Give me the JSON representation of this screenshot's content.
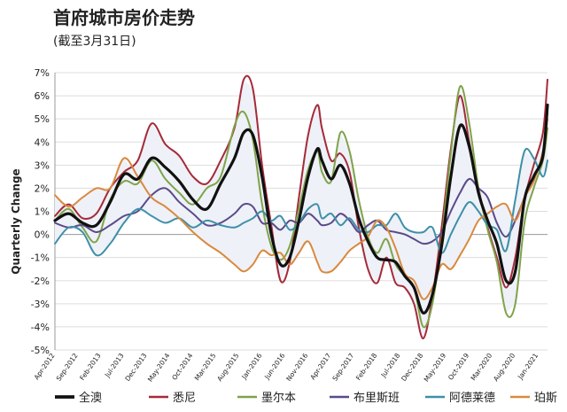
{
  "header": {
    "title": "首府城市房价走势",
    "subtitle": "(截至3月31日)"
  },
  "chart_data": {
    "type": "line",
    "title": "首府城市房价走势",
    "subtitle": "(截至3月31日)",
    "ylabel": "Quarterly Change",
    "xlabel": "",
    "ylim": [
      -5,
      7
    ],
    "yticks": [
      "7%",
      "6%",
      "5%",
      "4%",
      "3%",
      "2%",
      "1%",
      "0%",
      "-1%",
      "-2%",
      "-3%",
      "-4%",
      "-5%"
    ],
    "x_tick_labels": [
      "Apr-2012",
      "Sep-2012",
      "Feb-2013",
      "Jul-2013",
      "Dec-2013",
      "May-2014",
      "Oct-2014",
      "Mar-2015",
      "Aug-2015",
      "Jan-2016",
      "Jun-2016",
      "Nov-2016",
      "Apr-2017",
      "Sep-2017",
      "Feb-2018",
      "Jul-2018",
      "Dec-2018",
      "May-2019",
      "Oct-2019",
      "Mar-2020",
      "Aug-2020",
      "Jan-2021"
    ],
    "x_start": "2012-04",
    "x_end": "2021-03",
    "grid": true,
    "legend_position": "bottom",
    "series": [
      {
        "name": "全澳",
        "color": "#111111",
        "width": 3.2,
        "values": [
          [
            0,
            0.6
          ],
          [
            3,
            0.9
          ],
          [
            6,
            0.5
          ],
          [
            9,
            0.4
          ],
          [
            12,
            1.4
          ],
          [
            15,
            2.6
          ],
          [
            18,
            2.4
          ],
          [
            21,
            3.3
          ],
          [
            24,
            2.9
          ],
          [
            27,
            2.3
          ],
          [
            30,
            1.5
          ],
          [
            33,
            1.1
          ],
          [
            36,
            2.2
          ],
          [
            39,
            3.3
          ],
          [
            41,
            4.4
          ],
          [
            43,
            4.3
          ],
          [
            45,
            2.5
          ],
          [
            47,
            0.0
          ],
          [
            49,
            -1.3
          ],
          [
            51,
            -1.0
          ],
          [
            53,
            0.6
          ],
          [
            55,
            2.5
          ],
          [
            57,
            3.7
          ],
          [
            58,
            3.2
          ],
          [
            60,
            2.4
          ],
          [
            62,
            3.0
          ],
          [
            64,
            2.2
          ],
          [
            66,
            0.7
          ],
          [
            68,
            -0.3
          ],
          [
            70,
            -1.0
          ],
          [
            72,
            -1.1
          ],
          [
            74,
            -1.2
          ],
          [
            76,
            -1.8
          ],
          [
            78,
            -2.3
          ],
          [
            80,
            -3.4
          ],
          [
            82,
            -2.6
          ],
          [
            84,
            -0.5
          ],
          [
            86,
            2.5
          ],
          [
            88,
            4.7
          ],
          [
            90,
            3.8
          ],
          [
            92,
            1.8
          ],
          [
            94,
            0.6
          ],
          [
            96,
            -0.4
          ],
          [
            98,
            -2.0
          ],
          [
            100,
            -1.6
          ],
          [
            102,
            1.5
          ],
          [
            104,
            2.5
          ],
          [
            106,
            3.4
          ],
          [
            107,
            5.6
          ]
        ]
      },
      {
        "name": "悉尼",
        "color": "#a52a38",
        "width": 2,
        "values": [
          [
            0,
            0.8
          ],
          [
            3,
            1.3
          ],
          [
            6,
            0.7
          ],
          [
            9,
            0.9
          ],
          [
            12,
            2.0
          ],
          [
            15,
            2.7
          ],
          [
            18,
            3.2
          ],
          [
            21,
            4.8
          ],
          [
            24,
            3.9
          ],
          [
            27,
            3.4
          ],
          [
            30,
            2.5
          ],
          [
            33,
            2.2
          ],
          [
            36,
            3.2
          ],
          [
            39,
            4.6
          ],
          [
            41,
            6.7
          ],
          [
            43,
            6.3
          ],
          [
            45,
            3.0
          ],
          [
            47,
            0.4
          ],
          [
            49,
            -2.0
          ],
          [
            51,
            -1.2
          ],
          [
            53,
            1.6
          ],
          [
            55,
            4.3
          ],
          [
            57,
            5.6
          ],
          [
            58,
            4.6
          ],
          [
            60,
            3.2
          ],
          [
            62,
            3.5
          ],
          [
            64,
            2.7
          ],
          [
            66,
            0.3
          ],
          [
            68,
            -1.5
          ],
          [
            70,
            -2.1
          ],
          [
            72,
            -1.0
          ],
          [
            74,
            -2.1
          ],
          [
            76,
            -2.3
          ],
          [
            78,
            -3.0
          ],
          [
            80,
            -4.5
          ],
          [
            82,
            -2.7
          ],
          [
            84,
            0.3
          ],
          [
            86,
            3.7
          ],
          [
            88,
            6.0
          ],
          [
            90,
            4.0
          ],
          [
            92,
            2.0
          ],
          [
            94,
            0.3
          ],
          [
            96,
            -1.0
          ],
          [
            98,
            -2.3
          ],
          [
            100,
            -1.0
          ],
          [
            102,
            1.5
          ],
          [
            104,
            3.0
          ],
          [
            106,
            4.4
          ],
          [
            107,
            6.7
          ]
        ]
      },
      {
        "name": "墨尔本",
        "color": "#7fa34a",
        "width": 2,
        "values": [
          [
            0,
            0.6
          ],
          [
            3,
            1.1
          ],
          [
            6,
            0.3
          ],
          [
            9,
            -0.3
          ],
          [
            12,
            1.5
          ],
          [
            15,
            2.3
          ],
          [
            18,
            2.2
          ],
          [
            21,
            3.2
          ],
          [
            24,
            2.4
          ],
          [
            27,
            1.8
          ],
          [
            30,
            1.3
          ],
          [
            33,
            2.0
          ],
          [
            36,
            2.5
          ],
          [
            39,
            4.7
          ],
          [
            41,
            5.3
          ],
          [
            43,
            4.1
          ],
          [
            45,
            1.3
          ],
          [
            47,
            -0.5
          ],
          [
            49,
            -1.1
          ],
          [
            51,
            -0.5
          ],
          [
            53,
            1.1
          ],
          [
            55,
            2.8
          ],
          [
            57,
            3.6
          ],
          [
            58,
            2.7
          ],
          [
            60,
            2.3
          ],
          [
            62,
            4.4
          ],
          [
            64,
            3.6
          ],
          [
            66,
            1.5
          ],
          [
            68,
            -0.1
          ],
          [
            70,
            -0.8
          ],
          [
            72,
            -0.2
          ],
          [
            74,
            -1.3
          ],
          [
            76,
            -1.8
          ],
          [
            78,
            -2.3
          ],
          [
            80,
            -4.0
          ],
          [
            82,
            -3.0
          ],
          [
            84,
            -0.2
          ],
          [
            86,
            3.5
          ],
          [
            88,
            6.4
          ],
          [
            90,
            4.8
          ],
          [
            92,
            2.0
          ],
          [
            94,
            0.2
          ],
          [
            96,
            -1.2
          ],
          [
            98,
            -3.4
          ],
          [
            100,
            -3.0
          ],
          [
            102,
            0.5
          ],
          [
            104,
            2.0
          ],
          [
            106,
            3.2
          ],
          [
            107,
            4.6
          ]
        ]
      },
      {
        "name": "布里斯班",
        "color": "#5a4a8a",
        "width": 2,
        "values": [
          [
            0,
            0.5
          ],
          [
            3,
            0.3
          ],
          [
            6,
            0.4
          ],
          [
            9,
            0.1
          ],
          [
            12,
            0.4
          ],
          [
            15,
            0.8
          ],
          [
            18,
            1.0
          ],
          [
            21,
            1.7
          ],
          [
            24,
            2.0
          ],
          [
            27,
            1.4
          ],
          [
            30,
            0.9
          ],
          [
            33,
            0.4
          ],
          [
            36,
            0.5
          ],
          [
            39,
            0.9
          ],
          [
            41,
            1.3
          ],
          [
            43,
            1.2
          ],
          [
            45,
            0.5
          ],
          [
            47,
            0.5
          ],
          [
            49,
            0.2
          ],
          [
            51,
            0.6
          ],
          [
            53,
            0.5
          ],
          [
            55,
            0.9
          ],
          [
            57,
            0.6
          ],
          [
            58,
            0.4
          ],
          [
            60,
            0.5
          ],
          [
            62,
            0.9
          ],
          [
            64,
            0.6
          ],
          [
            66,
            0.1
          ],
          [
            68,
            0.4
          ],
          [
            70,
            0.6
          ],
          [
            72,
            0.2
          ],
          [
            74,
            0.1
          ],
          [
            76,
            0.0
          ],
          [
            78,
            -0.2
          ],
          [
            80,
            -0.4
          ],
          [
            82,
            -0.3
          ],
          [
            84,
            0.1
          ],
          [
            86,
            1.0
          ],
          [
            88,
            1.8
          ],
          [
            90,
            2.4
          ],
          [
            92,
            2.0
          ],
          [
            94,
            1.6
          ],
          [
            96,
            0.5
          ],
          [
            98,
            -0.1
          ],
          [
            100,
            0.6
          ],
          [
            102,
            1.6
          ],
          [
            104,
            2.5
          ],
          [
            106,
            3.3
          ],
          [
            107,
            5.3
          ]
        ]
      },
      {
        "name": "阿德莱德",
        "color": "#3e8fa8",
        "width": 2,
        "values": [
          [
            0,
            -0.4
          ],
          [
            3,
            0.3
          ],
          [
            6,
            0.1
          ],
          [
            9,
            -0.9
          ],
          [
            12,
            -0.4
          ],
          [
            15,
            0.5
          ],
          [
            18,
            1.1
          ],
          [
            21,
            0.8
          ],
          [
            24,
            0.5
          ],
          [
            27,
            0.7
          ],
          [
            30,
            0.3
          ],
          [
            33,
            0.6
          ],
          [
            36,
            0.4
          ],
          [
            39,
            0.3
          ],
          [
            41,
            0.5
          ],
          [
            43,
            0.7
          ],
          [
            45,
            1.0
          ],
          [
            47,
            0.6
          ],
          [
            49,
            0.8
          ],
          [
            51,
            0.2
          ],
          [
            53,
            0.5
          ],
          [
            55,
            1.1
          ],
          [
            57,
            1.3
          ],
          [
            58,
            0.7
          ],
          [
            60,
            0.9
          ],
          [
            62,
            0.4
          ],
          [
            64,
            0.7
          ],
          [
            66,
            0.2
          ],
          [
            68,
            0.1
          ],
          [
            70,
            0.4
          ],
          [
            72,
            0.4
          ],
          [
            74,
            0.9
          ],
          [
            76,
            0.3
          ],
          [
            78,
            0.1
          ],
          [
            80,
            0.1
          ],
          [
            82,
            0.3
          ],
          [
            84,
            -0.8
          ],
          [
            86,
            0.0
          ],
          [
            88,
            0.8
          ],
          [
            90,
            1.4
          ],
          [
            92,
            1.0
          ],
          [
            94,
            0.4
          ],
          [
            96,
            0.2
          ],
          [
            98,
            -0.7
          ],
          [
            100,
            1.5
          ],
          [
            102,
            3.6
          ],
          [
            104,
            3.3
          ],
          [
            106,
            2.5
          ],
          [
            107,
            3.2
          ]
        ]
      },
      {
        "name": "珀斯",
        "color": "#d9893e",
        "width": 2,
        "values": [
          [
            0,
            1.7
          ],
          [
            3,
            1.2
          ],
          [
            6,
            1.6
          ],
          [
            9,
            2.0
          ],
          [
            12,
            2.0
          ],
          [
            15,
            3.3
          ],
          [
            18,
            2.5
          ],
          [
            21,
            1.6
          ],
          [
            24,
            1.2
          ],
          [
            27,
            0.7
          ],
          [
            30,
            0.1
          ],
          [
            33,
            -0.4
          ],
          [
            36,
            -0.8
          ],
          [
            39,
            -1.3
          ],
          [
            41,
            -1.6
          ],
          [
            43,
            -1.3
          ],
          [
            45,
            -0.7
          ],
          [
            47,
            -0.9
          ],
          [
            49,
            -0.8
          ],
          [
            51,
            -1.3
          ],
          [
            53,
            -0.8
          ],
          [
            55,
            -0.3
          ],
          [
            57,
            -1.2
          ],
          [
            58,
            -1.6
          ],
          [
            60,
            -1.6
          ],
          [
            62,
            -1.2
          ],
          [
            64,
            -0.7
          ],
          [
            66,
            -0.4
          ],
          [
            68,
            -0.1
          ],
          [
            70,
            0.6
          ],
          [
            72,
            0.3
          ],
          [
            74,
            -0.6
          ],
          [
            76,
            -1.7
          ],
          [
            78,
            -2.0
          ],
          [
            80,
            -2.8
          ],
          [
            82,
            -2.3
          ],
          [
            84,
            -1.3
          ],
          [
            86,
            -1.5
          ],
          [
            88,
            -0.9
          ],
          [
            90,
            -0.2
          ],
          [
            92,
            0.6
          ],
          [
            94,
            0.9
          ],
          [
            96,
            1.2
          ],
          [
            98,
            1.3
          ],
          [
            100,
            0.6
          ],
          [
            102,
            1.6
          ],
          [
            104,
            2.3
          ],
          [
            106,
            3.6
          ],
          [
            107,
            5.0
          ]
        ]
      }
    ]
  }
}
